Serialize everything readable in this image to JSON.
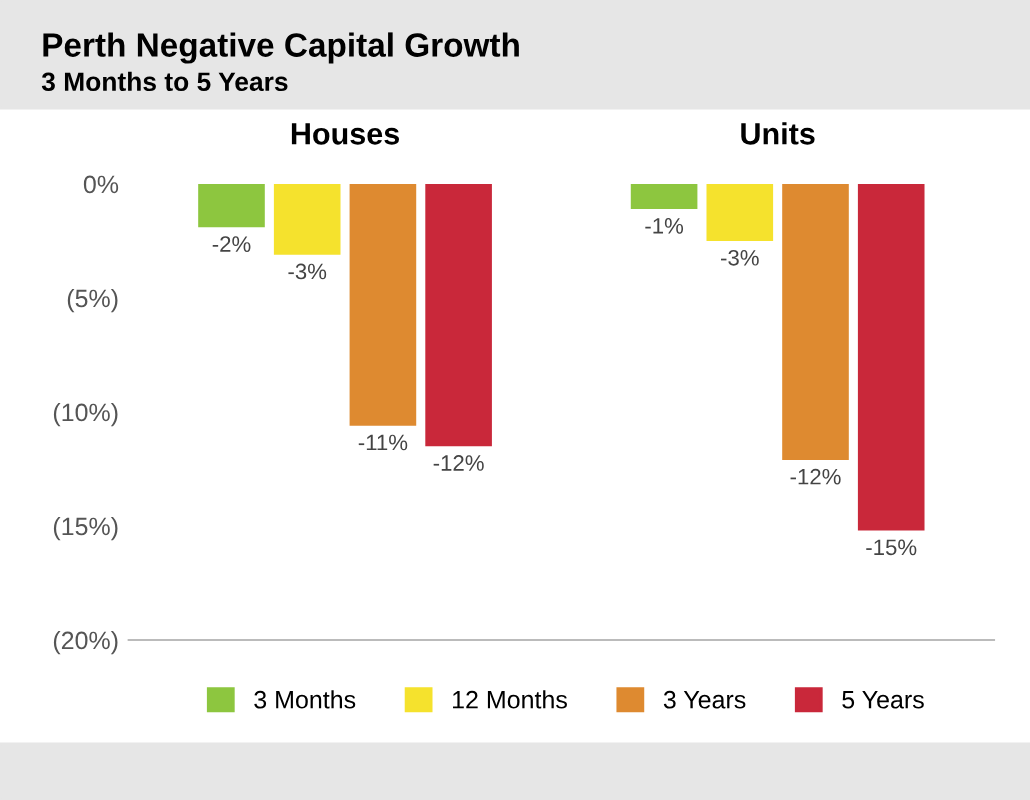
{
  "chart_data": {
    "type": "bar",
    "title": "Perth Negative Capital Growth",
    "subtitle": "3 Months to 5 Years",
    "categories": [
      "Houses",
      "Units"
    ],
    "series": [
      {
        "name": "3 Months",
        "color": "#8dc63f",
        "values": [
          -1.9,
          -1.1
        ],
        "value_labels": [
          "-2%",
          "-1%"
        ]
      },
      {
        "name": "12 Months",
        "color": "#f5e22d",
        "values": [
          -3.1,
          -2.5
        ],
        "value_labels": [
          "-3%",
          "-3%"
        ]
      },
      {
        "name": "3 Years",
        "color": "#de8a30",
        "values": [
          -10.6,
          -12.1
        ],
        "value_labels": [
          "-11%",
          "-12%"
        ]
      },
      {
        "name": "5 Years",
        "color": "#c9283a",
        "values": [
          -11.5,
          -15.2
        ],
        "value_labels": [
          "-12%",
          "-15%"
        ]
      }
    ],
    "ylim": [
      -20,
      0
    ],
    "yticks": [
      {
        "value": 0,
        "label": "0%"
      },
      {
        "value": -5,
        "label": "(5%)"
      },
      {
        "value": -10,
        "label": "(10%)"
      },
      {
        "value": -15,
        "label": "(15%)"
      },
      {
        "value": -20,
        "label": "(20%)"
      }
    ],
    "legend": "bottom"
  }
}
